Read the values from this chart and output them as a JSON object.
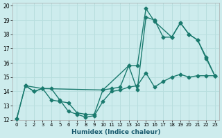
{
  "xlabel": "Humidex (Indice chaleur)",
  "bg_color": "#cdeced",
  "line_color": "#1a7a6e",
  "grid_color": "#b8dede",
  "xlim": [
    -0.5,
    23.5
  ],
  "ylim": [
    12,
    20.2
  ],
  "xticks": [
    0,
    1,
    2,
    3,
    4,
    5,
    6,
    7,
    8,
    9,
    10,
    11,
    12,
    13,
    14,
    15,
    16,
    17,
    18,
    19,
    20,
    21,
    22,
    23
  ],
  "yticks": [
    12,
    13,
    14,
    15,
    16,
    17,
    18,
    19,
    20
  ],
  "line1_x": [
    0,
    1,
    2,
    3,
    4,
    5,
    6,
    7,
    8,
    9,
    10,
    11,
    12,
    13,
    14,
    15,
    16,
    17,
    18,
    19,
    20,
    21,
    22,
    23
  ],
  "line1_y": [
    12.1,
    14.4,
    14.0,
    14.2,
    13.4,
    13.3,
    13.2,
    12.5,
    12.4,
    12.4,
    14.1,
    14.2,
    14.3,
    15.8,
    14.1,
    19.2,
    19.0,
    17.8,
    17.8,
    18.8,
    18.0,
    17.6,
    16.4,
    15.1
  ],
  "line2_x": [
    0,
    1,
    2,
    3,
    4,
    5,
    6,
    7,
    8,
    9,
    10,
    11,
    12,
    13,
    14,
    15,
    16,
    17,
    18,
    19,
    20,
    21,
    22,
    23
  ],
  "line2_y": [
    12.1,
    14.4,
    14.0,
    14.2,
    14.2,
    13.4,
    12.6,
    12.4,
    12.2,
    12.3,
    13.3,
    14.0,
    14.1,
    14.3,
    14.4,
    15.3,
    14.3,
    14.7,
    15.0,
    15.2,
    15.0,
    15.1,
    15.1,
    15.1
  ],
  "line3_x": [
    1,
    3,
    10,
    13,
    14,
    15,
    16,
    18,
    19,
    20,
    21,
    22,
    23
  ],
  "line3_y": [
    14.4,
    14.2,
    14.1,
    15.8,
    15.8,
    19.8,
    18.9,
    17.8,
    18.8,
    18.0,
    17.6,
    16.3,
    15.1
  ],
  "markersize": 2.5,
  "linewidth": 1.0
}
